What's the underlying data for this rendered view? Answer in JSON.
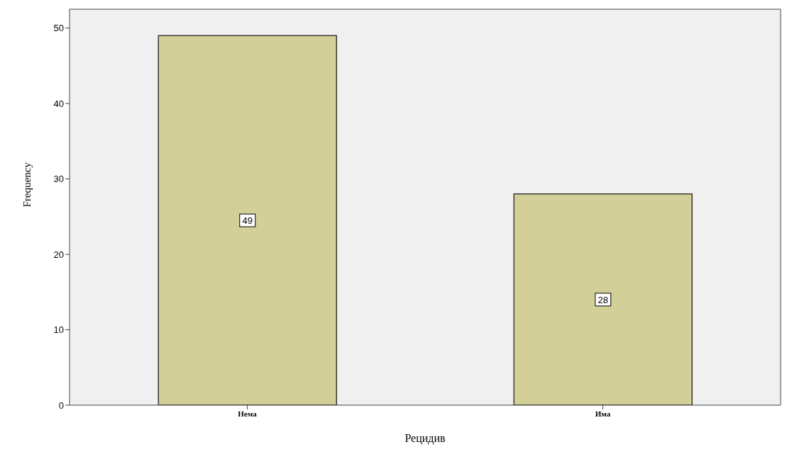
{
  "chart_data": {
    "type": "bar",
    "xlabel": "Рецидив",
    "ylabel": "Frequency",
    "categories": [
      "Нема",
      "Има"
    ],
    "values": [
      49,
      28
    ],
    "color": "#d3cf98",
    "ylim": [
      0,
      52.5
    ],
    "yticks": [
      0,
      10,
      20,
      30,
      40,
      50
    ],
    "grid": false,
    "data_labels": true
  }
}
